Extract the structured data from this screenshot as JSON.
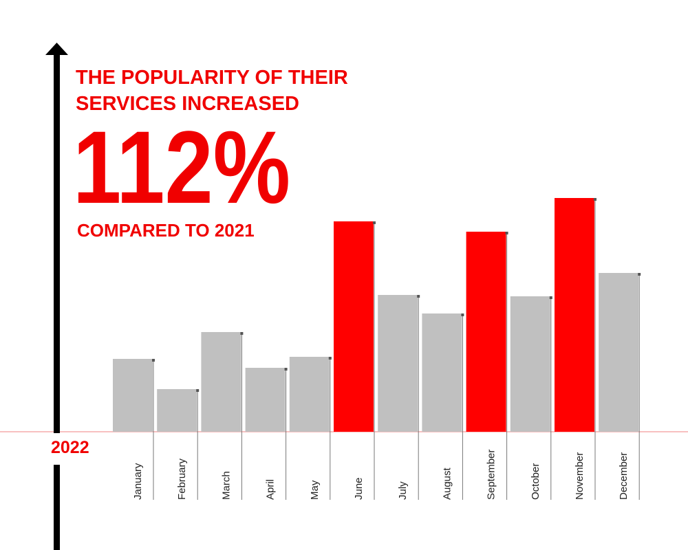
{
  "chart_data": {
    "type": "bar",
    "title_lines": [
      "THE POPULARITY OF THEIR",
      "SERVICES INCREASED"
    ],
    "headline": "112%",
    "subtitle": "COMPARED TO 2021",
    "axis_label": "2022",
    "categories": [
      "January",
      "February",
      "March",
      "April",
      "May",
      "June",
      "July",
      "August",
      "September",
      "October",
      "November",
      "December"
    ],
    "values": [
      106,
      62,
      145,
      93,
      109,
      306,
      199,
      172,
      291,
      197,
      340,
      231
    ],
    "colors": [
      "#c0c0c0",
      "#c0c0c0",
      "#c0c0c0",
      "#c0c0c0",
      "#c0c0c0",
      "#ff0000",
      "#c0c0c0",
      "#c0c0c0",
      "#ff0000",
      "#c0c0c0",
      "#ff0000",
      "#c0c0c0"
    ],
    "ylim": [
      0,
      340
    ]
  }
}
